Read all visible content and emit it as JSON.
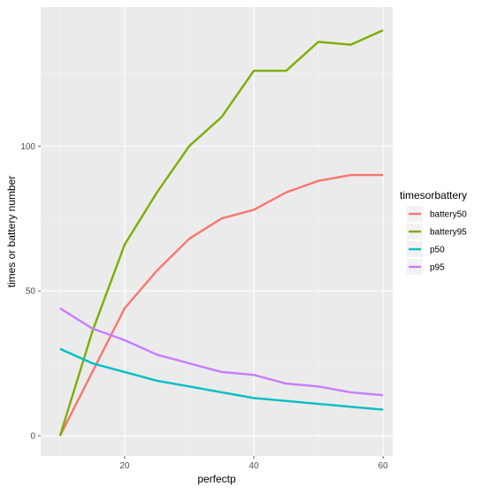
{
  "chart_data": {
    "type": "line",
    "xlabel": "perfectp",
    "ylabel": "times or battery number",
    "xlim": [
      7,
      61.5
    ],
    "ylim": [
      -7,
      148
    ],
    "x_ticks": [
      20,
      40,
      60
    ],
    "y_ticks": [
      0,
      50,
      100
    ],
    "grid": true,
    "legend": {
      "title": "timesorbattery",
      "placement": "right"
    },
    "x": [
      10,
      15,
      20,
      25,
      30,
      35,
      40,
      45,
      50,
      55,
      60
    ],
    "series": [
      {
        "name": "battery50",
        "color": "#F8766D",
        "values": [
          0,
          22,
          44,
          57,
          68,
          75,
          78,
          84,
          88,
          90,
          90
        ]
      },
      {
        "name": "battery95",
        "color": "#7CAE00",
        "values": [
          0,
          36,
          66,
          84,
          100,
          110,
          126,
          126,
          136,
          135,
          140
        ]
      },
      {
        "name": "p50",
        "color": "#00BFC4",
        "values": [
          30,
          25,
          22,
          19,
          17,
          15,
          13,
          12,
          11,
          10,
          9
        ]
      },
      {
        "name": "p95",
        "color": "#C77CFF",
        "values": [
          44,
          37,
          33,
          28,
          25,
          22,
          21,
          18,
          17,
          15,
          14
        ]
      }
    ]
  }
}
